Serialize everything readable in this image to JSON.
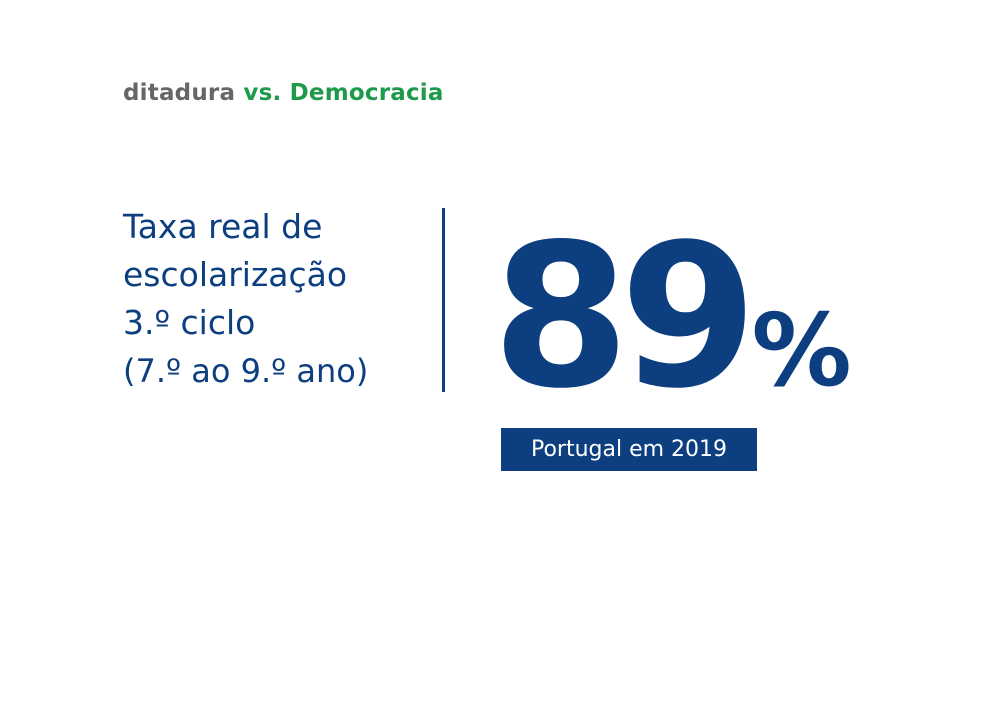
{
  "header": {
    "left_word": "ditadura",
    "right_phrase": "vs. Democracia"
  },
  "indicator": {
    "label_lines": [
      "Taxa real de",
      "escolarização",
      "3.º ciclo"
    ],
    "sub_label": "(7.º ao 9.º ano)"
  },
  "stat": {
    "value": "89",
    "unit": "%",
    "caption": "Portugal em 2019"
  },
  "colors": {
    "primary_blue": "#0d3f80",
    "accent_green": "#1f9a4a",
    "grey": "#666666",
    "background": "#ffffff"
  }
}
